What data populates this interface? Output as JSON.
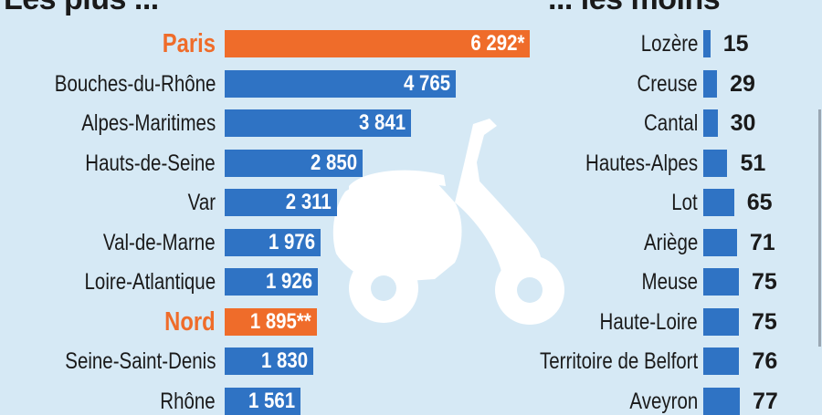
{
  "headings": {
    "left": "Les plus ...",
    "right": "... les moins"
  },
  "colors": {
    "bar": "#2f73c4",
    "highlight": "#ef6c2a",
    "background": "#d6e9f5"
  },
  "icons": {
    "illustration": "scooter-icon"
  },
  "chart_data": [
    {
      "type": "bar",
      "orientation": "horizontal",
      "title": "Les plus ...",
      "categories": [
        "Paris",
        "Bouches-du-Rhône",
        "Alpes-Maritimes",
        "Hauts-de-Seine",
        "Var",
        "Val-de-Marne",
        "Loire-Atlantique",
        "Nord",
        "Seine-Saint-Denis",
        "Rhône"
      ],
      "values": [
        6292,
        4765,
        3841,
        2850,
        2311,
        1976,
        1926,
        1895,
        1830,
        1561
      ],
      "value_labels": [
        "6 292*",
        "4 765",
        "3 841",
        "2 850",
        "2 311",
        "1 976",
        "1 926",
        "1 895**",
        "1 830",
        "1 561"
      ],
      "highlighted": [
        "Paris",
        "Nord"
      ]
    },
    {
      "type": "bar",
      "orientation": "horizontal",
      "title": "... les moins",
      "categories": [
        "Lozère",
        "Creuse",
        "Cantal",
        "Hautes-Alpes",
        "Lot",
        "Ariège",
        "Meuse",
        "Haute-Loire",
        "Territoire de Belfort",
        "Aveyron"
      ],
      "values": [
        15,
        29,
        30,
        51,
        65,
        71,
        75,
        75,
        76,
        77
      ],
      "value_labels": [
        "15",
        "29",
        "30",
        "51",
        "65",
        "71",
        "75",
        "75",
        "76",
        "77"
      ]
    }
  ]
}
